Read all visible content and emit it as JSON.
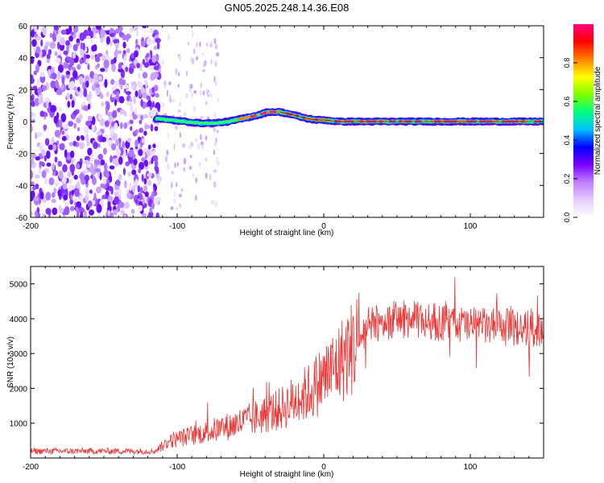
{
  "title": "GN05.2025.248.14.36.E08",
  "chart_data": [
    {
      "type": "heatmap",
      "name": "spectrogram",
      "xlabel": "Height of straight line (km)",
      "ylabel": "Frequency (Hz)",
      "xlim": [
        -200,
        150
      ],
      "ylim": [
        -60,
        60
      ],
      "xticks": [
        -200,
        -100,
        0,
        100
      ],
      "yticks": [
        60,
        40,
        20,
        0,
        -20,
        -40,
        -60
      ],
      "colorbar": {
        "label": "Normalized spectral amplitude",
        "range": [
          0,
          1
        ],
        "ticks": [
          0.0,
          0.2,
          0.4,
          0.6,
          0.8
        ],
        "colors": [
          "#ffffff",
          "#e6ccff",
          "#c080ff",
          "#7a00ff",
          "#0000ff",
          "#00c0ff",
          "#00ff80",
          "#80ff00",
          "#ffff00",
          "#ff8000",
          "#ff0000",
          "#ff0080"
        ]
      },
      "noise_region_x": [
        -200,
        -112
      ],
      "ridge": {
        "x": [
          -115,
          -105,
          -95,
          -85,
          -75,
          -65,
          -55,
          -45,
          -38,
          -30,
          -20,
          -12,
          -5,
          0,
          10,
          20,
          40,
          60,
          80,
          100,
          120,
          150
        ],
        "y": [
          2,
          1,
          0,
          -1,
          -1,
          0,
          2,
          4,
          6,
          6,
          4,
          2,
          1,
          1,
          0,
          0,
          0,
          0,
          0,
          0,
          0,
          0
        ]
      }
    },
    {
      "type": "line",
      "name": "snr",
      "xlabel": "Height of straight line (km)",
      "ylabel": "SNR (10 * v/v)",
      "xlim": [
        -200,
        150
      ],
      "ylim": [
        0,
        5500
      ],
      "xticks": [
        -200,
        -100,
        0,
        100
      ],
      "yticks": [
        1000,
        2000,
        3000,
        4000,
        5000
      ],
      "color": "#ee3333",
      "trend": {
        "x": [
          -200,
          -115,
          -105,
          -90,
          -70,
          -50,
          -30,
          -10,
          0,
          10,
          20,
          30,
          50,
          80,
          100,
          120,
          150
        ],
        "y": [
          200,
          200,
          500,
          650,
          850,
          1100,
          1400,
          1900,
          2300,
          2700,
          3200,
          3800,
          4000,
          3900,
          3800,
          3750,
          3700
        ]
      }
    }
  ]
}
